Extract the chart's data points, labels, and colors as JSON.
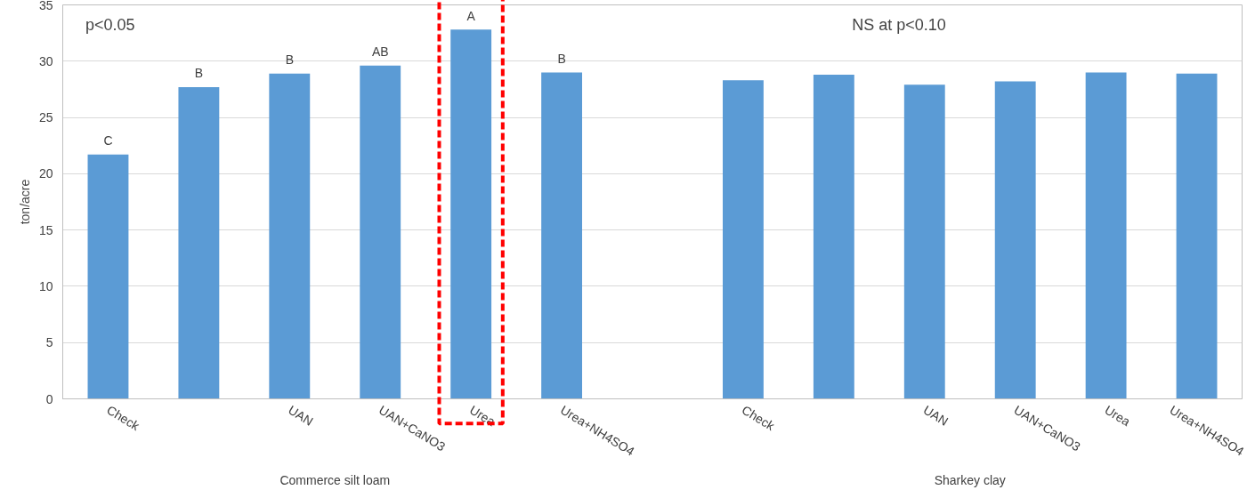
{
  "chart_data": {
    "type": "bar",
    "ylabel": "ton/acre",
    "categories": [
      "Check",
      null,
      "UAN",
      "UAN+CaNO3",
      "Urea",
      "Urea+NH4SO4",
      null,
      "Check",
      null,
      "UAN",
      "UAN+CaNO3",
      "Urea",
      "Urea+NH4SO4"
    ],
    "values": [
      21.7,
      27.7,
      28.9,
      29.6,
      32.8,
      29.0,
      null,
      28.3,
      28.8,
      27.9,
      28.2,
      29.0,
      28.9
    ],
    "value_labels": [
      "C",
      "B",
      "B",
      "AB",
      "A",
      "B",
      null,
      null,
      null,
      null,
      null,
      null,
      null
    ],
    "color": "#5b9bd5",
    "ylim": [
      0,
      35
    ],
    "yticks": [
      0,
      5,
      10,
      15,
      20,
      25,
      30,
      35
    ],
    "grid": "y",
    "annotations": [
      "p<0.05",
      "NS at p<0.10",
      "Commerce silt loam",
      "Sharkey clay"
    ]
  }
}
